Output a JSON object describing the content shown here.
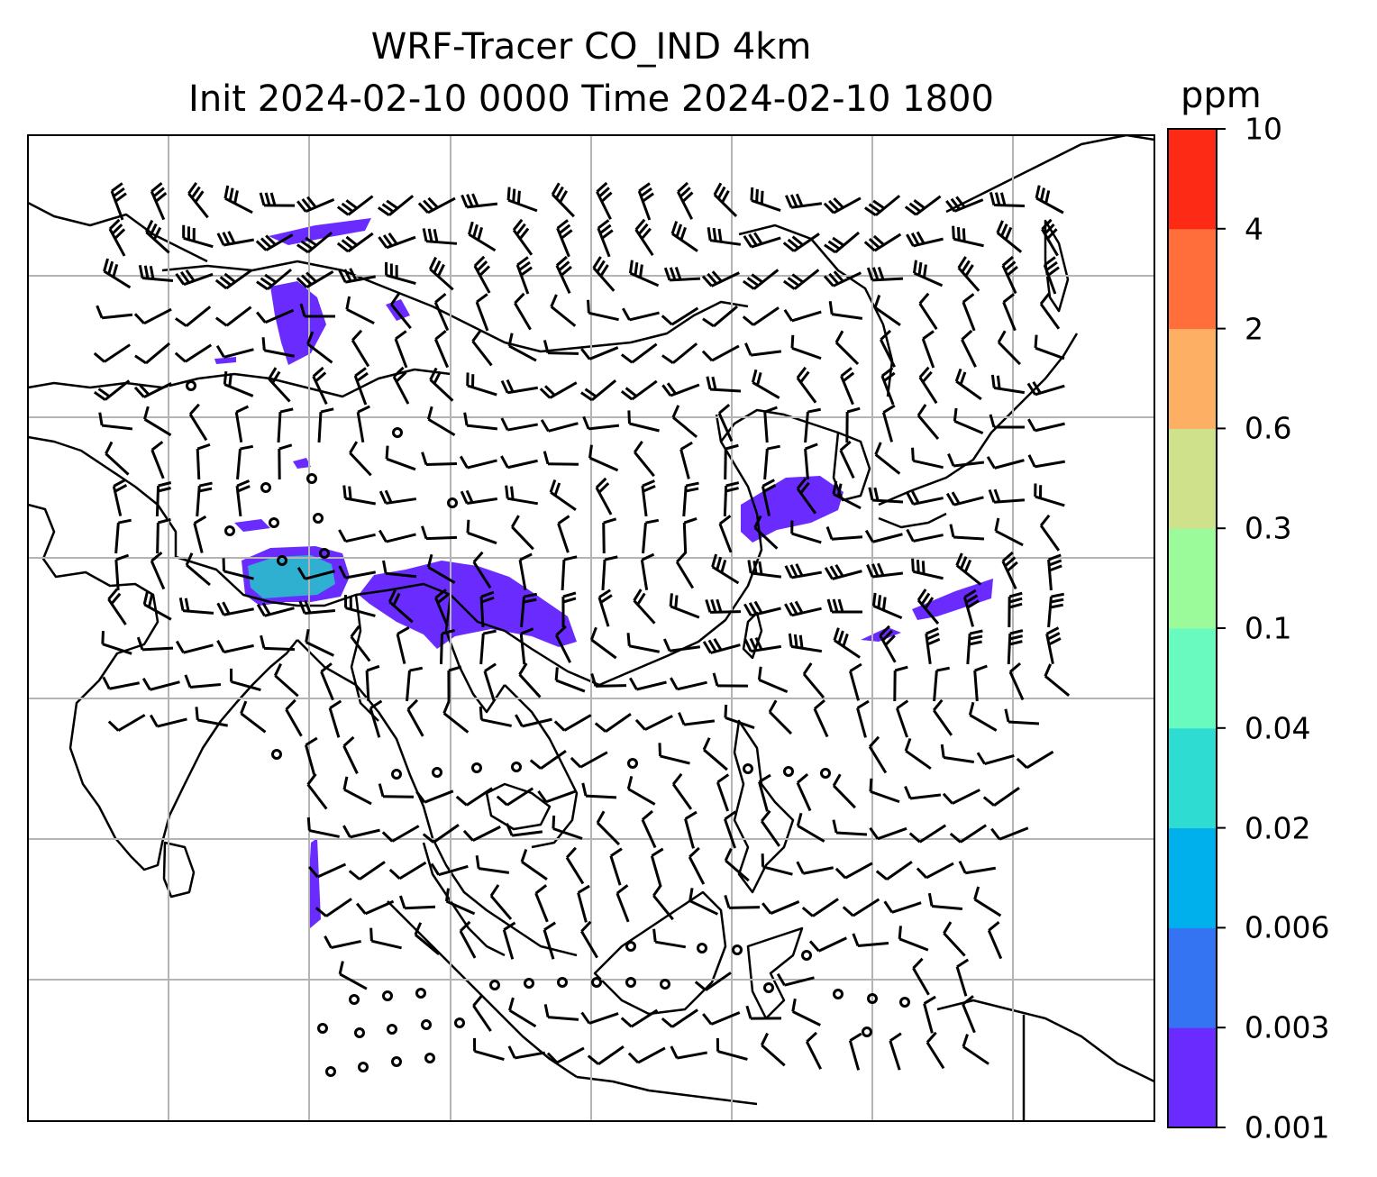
{
  "title": {
    "line1": "WRF-Tracer CO_IND 4km",
    "line2": "Init 2024-02-10 0000 Time 2024-02-10 1800"
  },
  "colorbar": {
    "units": "ppm",
    "levels": [
      "0.001",
      "0.003",
      "0.006",
      "0.02",
      "0.04",
      "0.1",
      "0.3",
      "0.6",
      "2",
      "4",
      "10"
    ],
    "colors": [
      "#6a2bff",
      "#3473f2",
      "#00b0ec",
      "#2fdcd2",
      "#69fac0",
      "#9bfb9a",
      "#cfe18a",
      "#fdb063",
      "#ff6e3b",
      "#fd2b16"
    ]
  },
  "map": {
    "background": "#ffffff",
    "gridline_color": "#b4b4b4",
    "coastline_color": "#000000",
    "plume_color_min": "#6a2bff",
    "plume_color_high": "#2fb0d0",
    "wind_barbs": "black barbs, calm circles"
  }
}
